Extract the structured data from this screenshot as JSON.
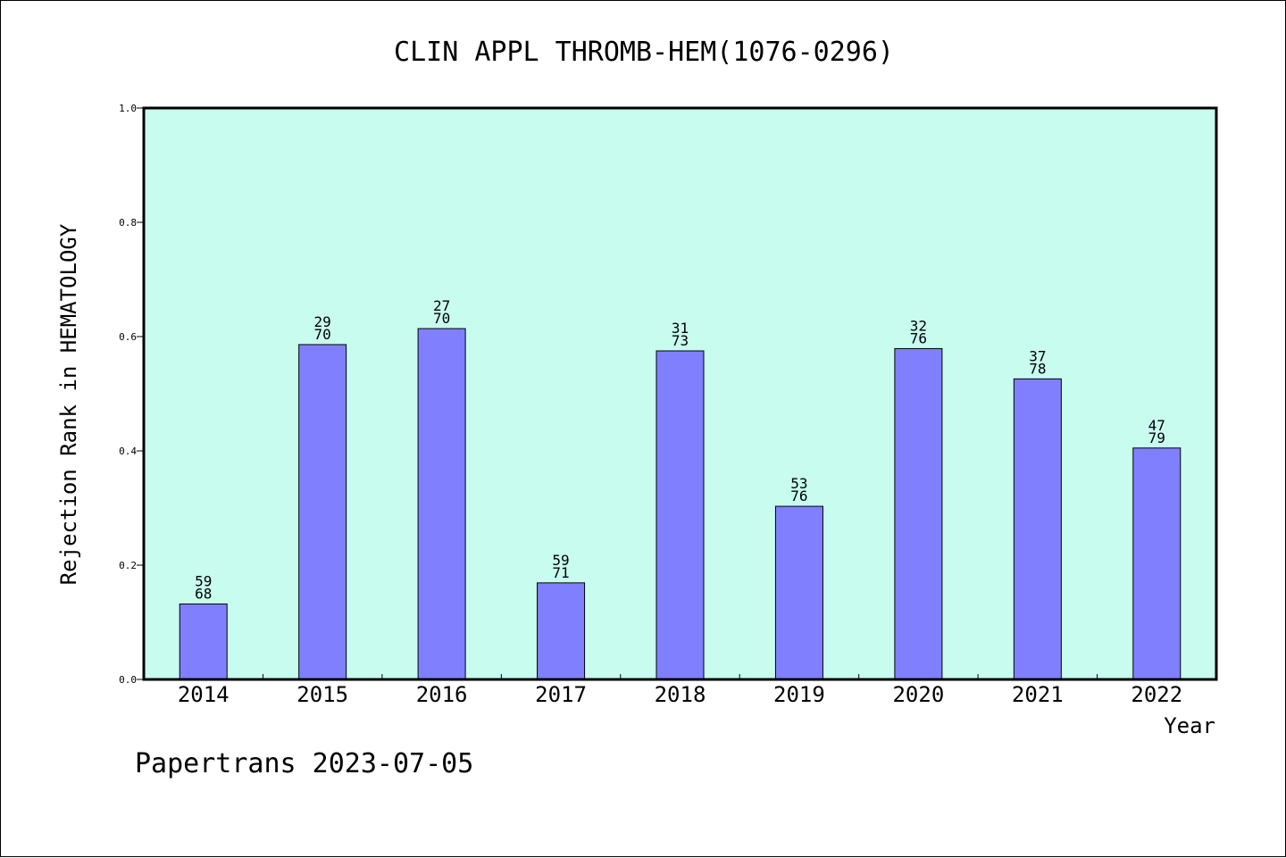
{
  "chart_data": {
    "type": "bar",
    "title": "CLIN APPL THROMB-HEM(1076-0296)",
    "ylabel": "Rejection Rank in HEMATOLOGY",
    "xlabel": "Year",
    "ylim": [
      0,
      1.0
    ],
    "yticks": [
      "0.0",
      "0.2",
      "0.4",
      "0.6",
      "0.8",
      "1.0"
    ],
    "categories": [
      "2014",
      "2015",
      "2016",
      "2017",
      "2018",
      "2019",
      "2020",
      "2021",
      "2022"
    ],
    "values": [
      0.132,
      0.586,
      0.614,
      0.169,
      0.575,
      0.303,
      0.579,
      0.526,
      0.405
    ],
    "labels": [
      [
        "59",
        "68"
      ],
      [
        "29",
        "70"
      ],
      [
        "27",
        "70"
      ],
      [
        "59",
        "71"
      ],
      [
        "31",
        "73"
      ],
      [
        "53",
        "76"
      ],
      [
        "32",
        "76"
      ],
      [
        "37",
        "78"
      ],
      [
        "47",
        "79"
      ]
    ],
    "grid": false,
    "plot_background": "#c8fcee",
    "bar_color": "#8080ff"
  },
  "footer": "Papertrans 2023-07-05"
}
